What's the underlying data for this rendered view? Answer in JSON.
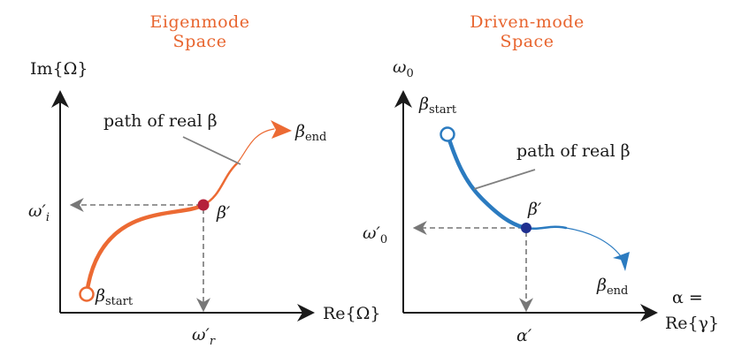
{
  "left_panel": {
    "title_line1": "Eigenmode",
    "title_line2": "Space",
    "y_axis_label": "Im{Ω}",
    "x_axis_label": "Re{Ω}",
    "path_label": "path of real β",
    "beta_start": "β",
    "beta_start_sub": "start",
    "beta_end": "β",
    "beta_end_sub": "end",
    "beta_prime": "β′",
    "omega_i": "ω′",
    "omega_i_sub": "i",
    "omega_r": "ω′",
    "omega_r_sub": "r",
    "color": "#ec6a33"
  },
  "right_panel": {
    "title_line1": "Driven-mode",
    "title_line2": "Space",
    "y_axis_label": "ω",
    "y_axis_sub": "0",
    "x_axis_label_line1": "α =",
    "x_axis_label_line2": "Re{γ}",
    "path_label": "path of real β",
    "beta_start": "β",
    "beta_start_sub": "start",
    "beta_end": "β",
    "beta_end_sub": "end",
    "beta_prime": "β′",
    "omega_0": "ω′",
    "omega_0_sub": "0",
    "alpha_prime": "α′",
    "color": "#2b7bc0"
  },
  "marker_colors": {
    "left_point": "#b5203a",
    "right_point": "#1f2f8f"
  }
}
